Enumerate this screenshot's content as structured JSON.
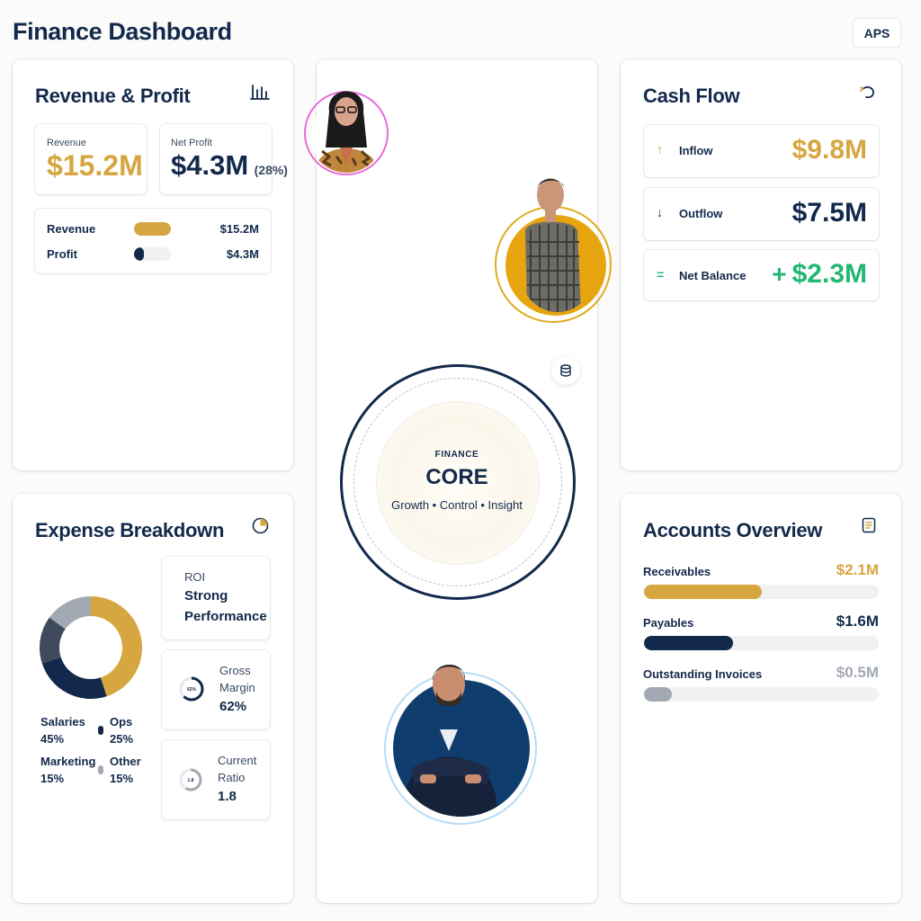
{
  "header": {
    "title": "Finance Dashboard",
    "aps_label": "APS"
  },
  "revenue_profit": {
    "title": "Revenue & Profit",
    "revenue_label": "Revenue",
    "revenue_value": "$15.2M",
    "net_profit_label": "Net Profit",
    "net_profit_value": "$4.3M",
    "net_profit_pct": "(28%)",
    "bars": [
      {
        "label": "Revenue",
        "value": "$15.2M",
        "fill": 1.0
      },
      {
        "label": "Profit",
        "value": "$4.3M",
        "fill": 0.28
      }
    ]
  },
  "cash_flow": {
    "title": "Cash Flow",
    "rows": [
      {
        "label": "Inflow",
        "value": "$9.8M",
        "symbol": "↑"
      },
      {
        "label": "Outflow",
        "value": "$7.5M",
        "symbol": "↓"
      },
      {
        "label": "Net Balance",
        "value": "$2.3M",
        "symbol": "=",
        "sign": "+"
      }
    ]
  },
  "core": {
    "kicker": "FINANCE",
    "title": "CORE",
    "tagline": "Growth • Control • Insight"
  },
  "expense": {
    "title": "Expense Breakdown",
    "legend": [
      {
        "label": "Salaries",
        "pct": "45%"
      },
      {
        "label": "Ops",
        "pct": "25%"
      },
      {
        "label": "Marketing",
        "pct": "15%"
      },
      {
        "label": "Other",
        "pct": "15%"
      }
    ],
    "roi_label": "ROI",
    "roi_line1": "Strong",
    "roi_line2": "Performance",
    "gross_margin_line1": "Gross",
    "gross_margin_line2": "Margin",
    "gross_margin_value": "62%",
    "gross_margin_gauge": "62%",
    "current_ratio_line1": "Current",
    "current_ratio_line2": "Ratio",
    "current_ratio_value": "1.8",
    "current_ratio_gauge": "1.8"
  },
  "accounts": {
    "title": "Accounts Overview",
    "rows": [
      {
        "label": "Receivables",
        "value": "$2.1M",
        "fill": 0.5
      },
      {
        "label": "Payables",
        "value": "$1.6M",
        "fill": 0.38
      },
      {
        "label": "Outstanding Invoices",
        "value": "$0.5M",
        "fill": 0.12
      }
    ]
  },
  "colors": {
    "navy": "#13294b",
    "gold": "#d6a640",
    "green": "#21b874",
    "gray": "#a2a9b2",
    "pink_ring": "#e86ad9",
    "light_blue_ring": "#b8dbf4"
  },
  "chart_data": {
    "type": "pie",
    "categories": [
      "Salaries",
      "Ops",
      "Marketing",
      "Other"
    ],
    "values": [
      45,
      25,
      15,
      15
    ]
  }
}
